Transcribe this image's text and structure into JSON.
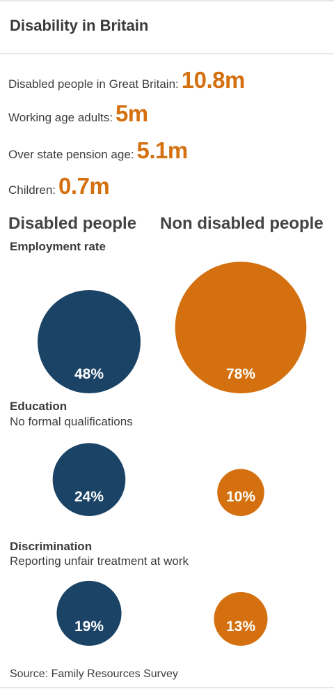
{
  "title": "Disability in Britain",
  "stats": [
    {
      "label": "Disabled people in Great Britain:",
      "value": "10.8m"
    },
    {
      "label": "Working age adults:",
      "value": "5m"
    },
    {
      "label": "Over state pension age:",
      "value": "5.1m"
    },
    {
      "label": "Children:",
      "value": "0.7m"
    }
  ],
  "chart_data": {
    "type": "bubble",
    "series": [
      {
        "name": "Disabled people",
        "color": "#1a4366"
      },
      {
        "name": "Non disabled people",
        "color": "#d4700f"
      }
    ],
    "sections": [
      {
        "title": "Employment rate",
        "subtitle": "",
        "values": [
          48,
          78
        ],
        "labels": [
          "48%",
          "78%"
        ]
      },
      {
        "title": "Education",
        "subtitle": "No formal qualifications",
        "values": [
          24,
          10
        ],
        "labels": [
          "24%",
          "10%"
        ]
      },
      {
        "title": "Discrimination",
        "subtitle": "Reporting unfair treatment at work",
        "values": [
          19,
          13
        ],
        "labels": [
          "19%",
          "13%"
        ]
      }
    ]
  },
  "source": "Source: Family Resources Survey"
}
